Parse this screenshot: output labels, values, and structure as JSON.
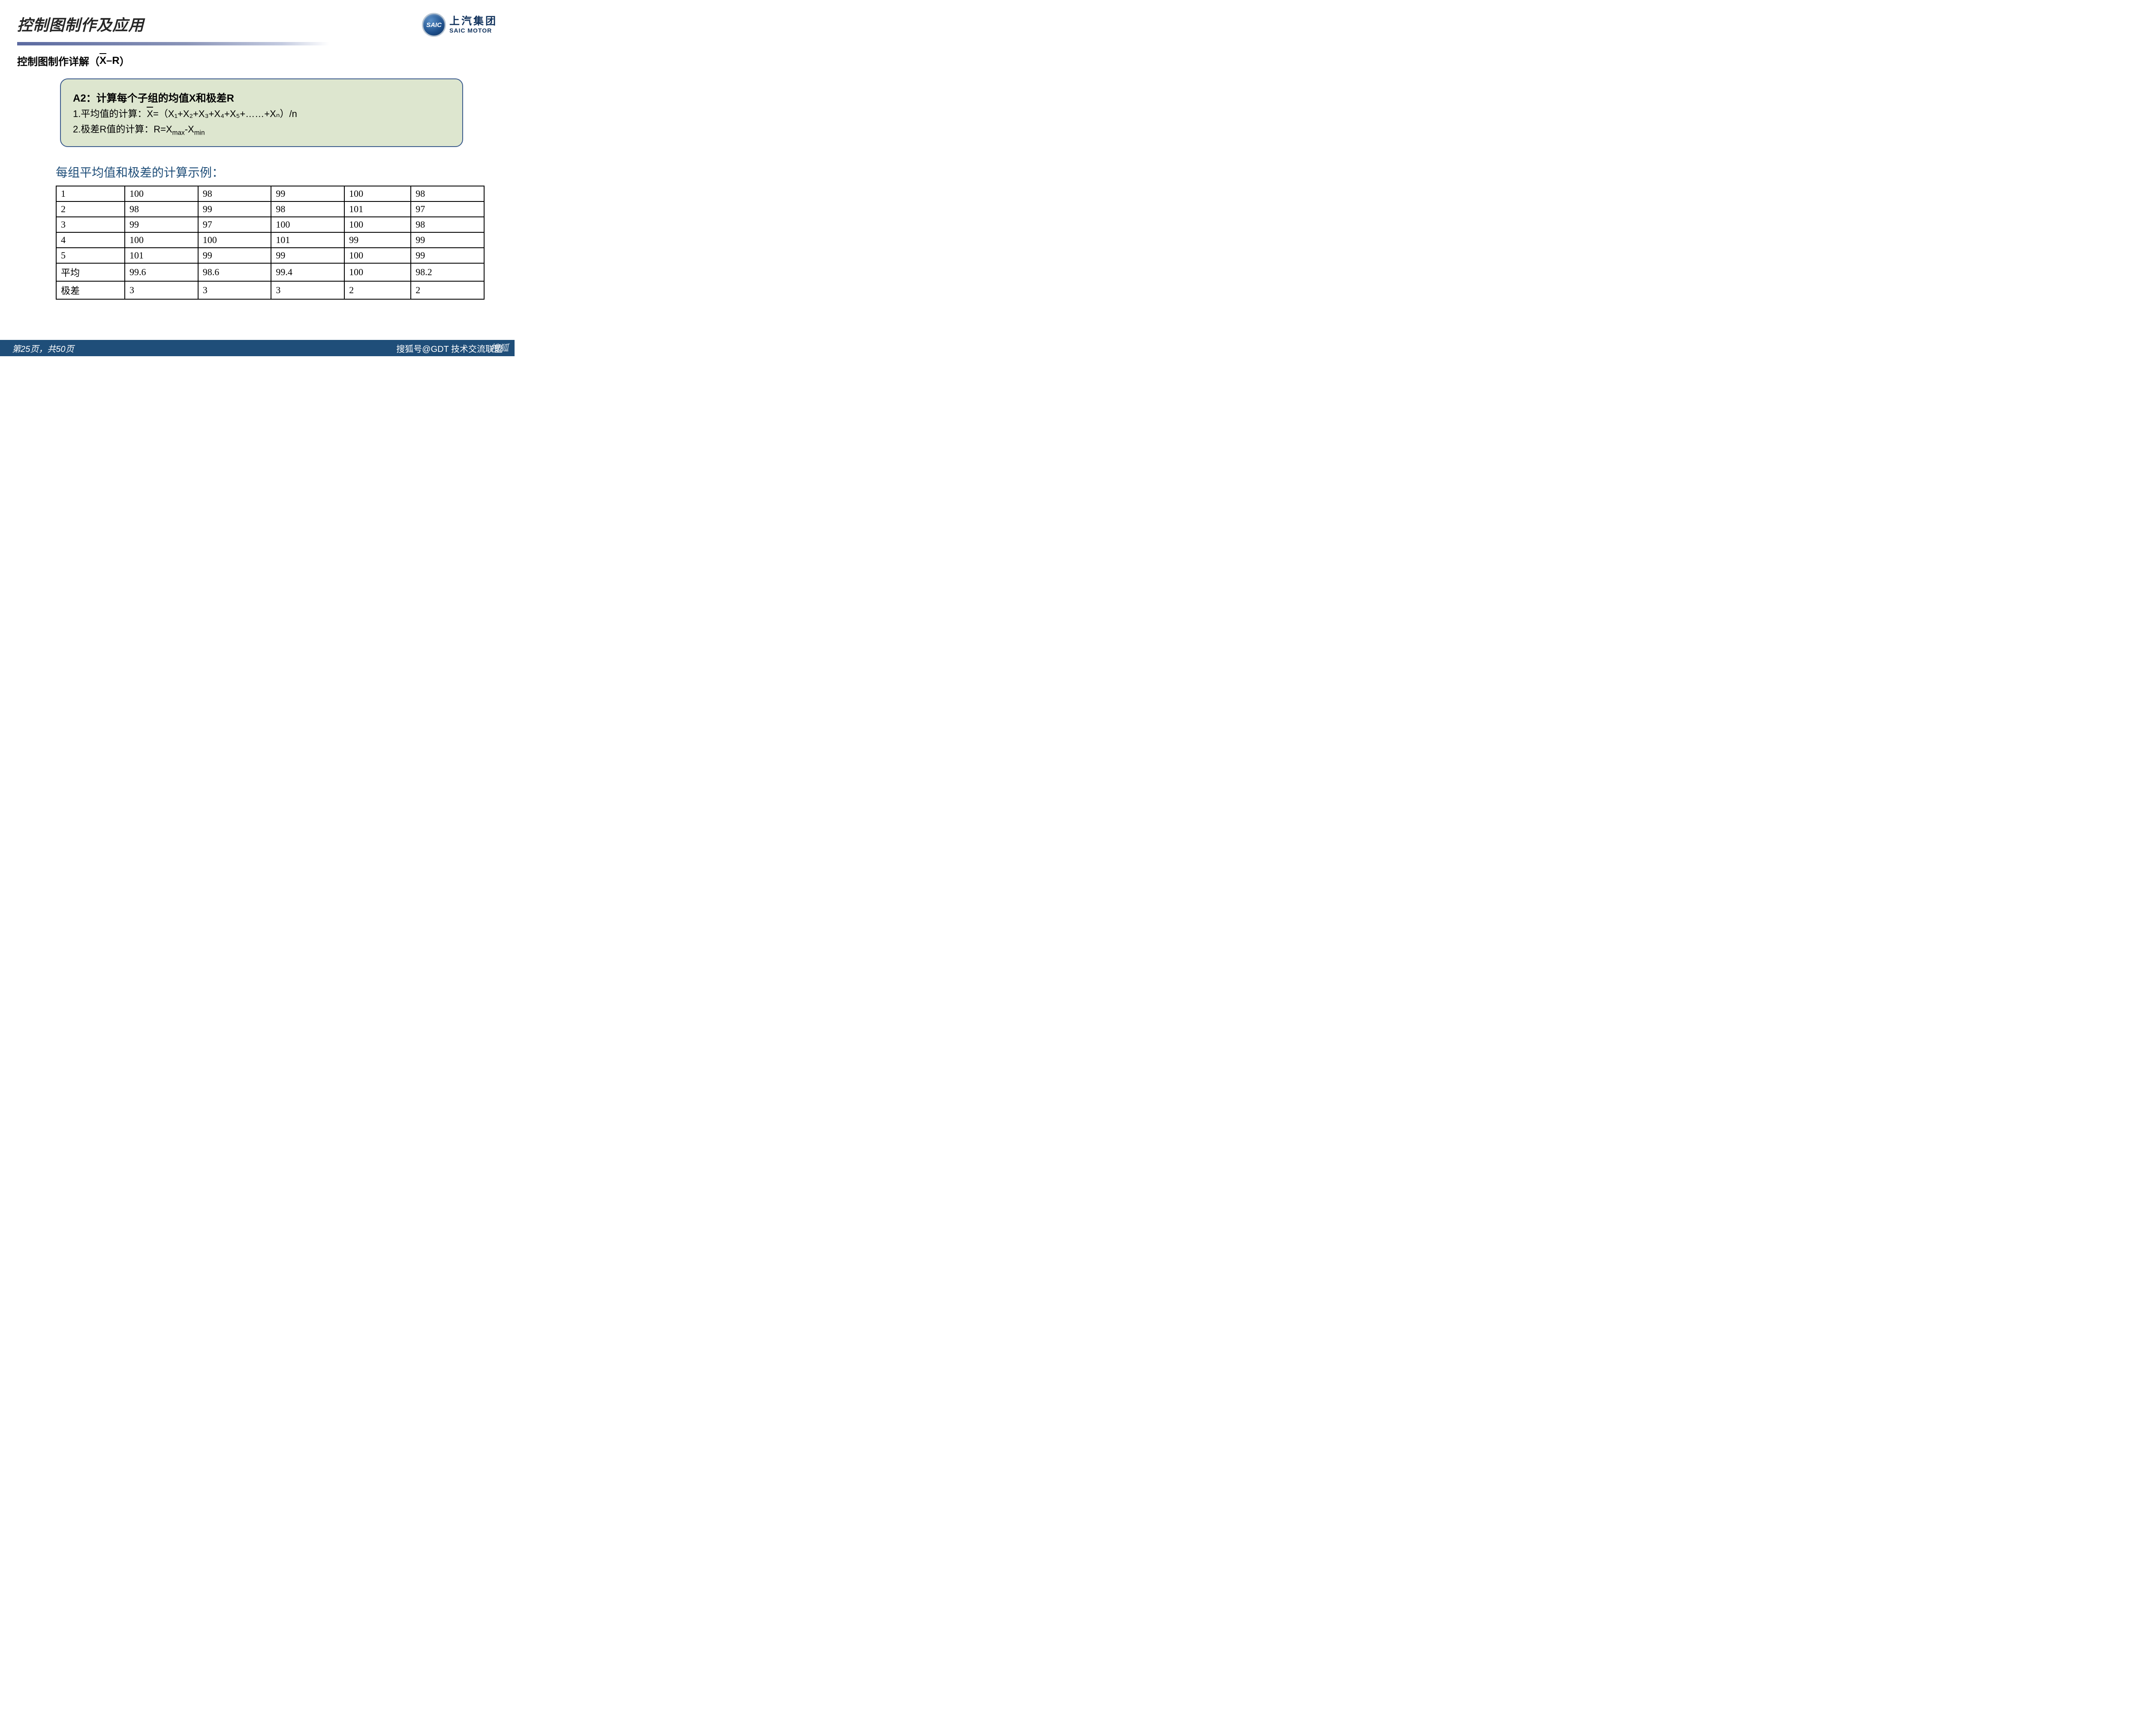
{
  "header": {
    "title": "控制图制作及应用",
    "logo_abbrev": "SAIC",
    "logo_cn": "上汽集团",
    "logo_en": "SAIC MOTOR"
  },
  "subtitle": {
    "prefix": "控制图制作详解（",
    "xbar": "X",
    "dash": "–",
    "r": "R",
    "suffix": "）"
  },
  "callout": {
    "title": "A2：计算每个子组的均值X和极差R",
    "line1_prefix": "1.平均值的计算：",
    "line1_xbar": "X",
    "line1_rest": "=（X₁+X₂+X₃+X₄+X₅+……+Xₙ）/n",
    "line2_prefix": "2.极差R值的计算：R=X",
    "line2_sub1": "max",
    "line2_mid": "-X",
    "line2_sub2": "min"
  },
  "section_heading": "每组平均值和极差的计算示例：",
  "table": {
    "rows": [
      [
        "1",
        "100",
        "98",
        "99",
        "100",
        "98"
      ],
      [
        "2",
        "98",
        "99",
        "98",
        "101",
        "97"
      ],
      [
        "3",
        "99",
        "97",
        "100",
        "100",
        "98"
      ],
      [
        "4",
        "100",
        "100",
        "101",
        "99",
        "99"
      ],
      [
        "5",
        "101",
        "99",
        "99",
        "100",
        "99"
      ],
      [
        "平均",
        "99.6",
        "98.6",
        "99.4",
        "100",
        "98.2"
      ],
      [
        "极差",
        "3",
        "3",
        "3",
        "2",
        "2"
      ]
    ],
    "col_count": 6,
    "border_color": "#000000",
    "cell_fontsize": 22
  },
  "footer": {
    "page_text": "第25页，共50页",
    "right_text": "搜狐号@GDT 技术交流联盟"
  },
  "watermark": "搜狐",
  "colors": {
    "title_color": "#262626",
    "divider_gradient_from": "#5b6aa0",
    "divider_gradient_to": "#ffffff",
    "callout_bg": "#dde6cf",
    "callout_border": "#3b5b8c",
    "heading_color": "#1f4e79",
    "footer_bg": "#1f4e79",
    "footer_text": "#ffffff",
    "logo_text_color": "#0d2f5a"
  }
}
